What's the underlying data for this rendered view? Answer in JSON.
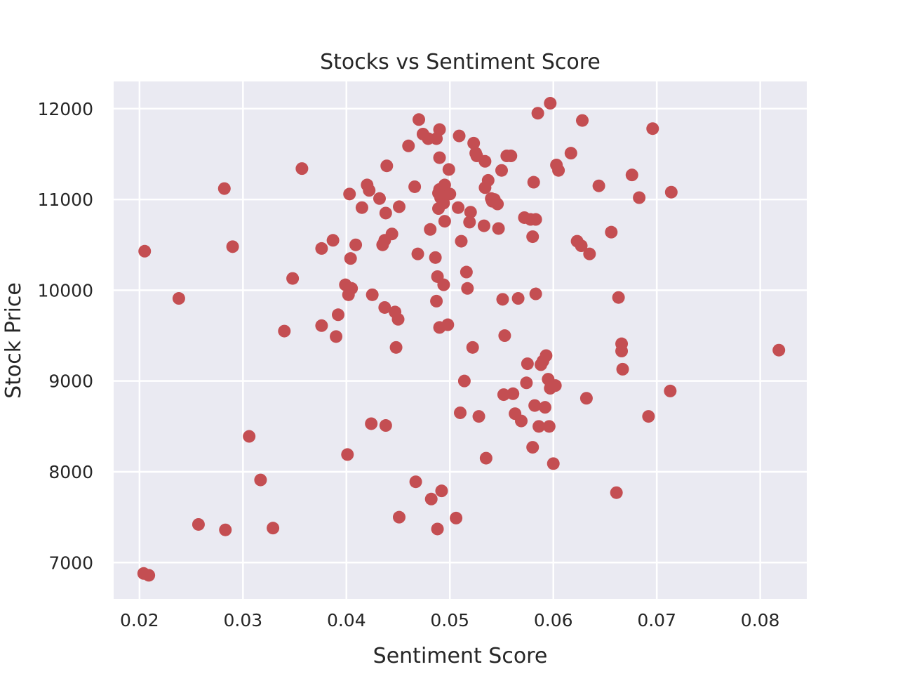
{
  "chart_data": {
    "type": "scatter",
    "title": "Stocks vs Sentiment Score",
    "xlabel": "Sentiment Score",
    "ylabel": "Stock Price",
    "xlim": [
      0.0175,
      0.0845
    ],
    "ylim": [
      6600,
      12300
    ],
    "xticks": [
      0.02,
      0.03,
      0.04,
      0.05,
      0.06,
      0.07,
      0.08
    ],
    "xtick_labels": [
      "0.02",
      "0.03",
      "0.04",
      "0.05",
      "0.06",
      "0.07",
      "0.08"
    ],
    "yticks": [
      7000,
      8000,
      9000,
      10000,
      11000,
      12000
    ],
    "ytick_labels": [
      "7000",
      "8000",
      "9000",
      "10000",
      "11000",
      "12000"
    ],
    "grid": true,
    "colors": {
      "background": "#eaeaf2",
      "grid": "#ffffff",
      "point": "#c44e52"
    },
    "points": [
      [
        0.0204,
        6880
      ],
      [
        0.0209,
        6860
      ],
      [
        0.0205,
        10430
      ],
      [
        0.0238,
        9910
      ],
      [
        0.0257,
        7420
      ],
      [
        0.0282,
        11120
      ],
      [
        0.0283,
        7360
      ],
      [
        0.029,
        10480
      ],
      [
        0.0306,
        8390
      ],
      [
        0.0317,
        7910
      ],
      [
        0.0329,
        7380
      ],
      [
        0.034,
        9550
      ],
      [
        0.0348,
        10130
      ],
      [
        0.0357,
        11340
      ],
      [
        0.0376,
        10460
      ],
      [
        0.0376,
        9610
      ],
      [
        0.0387,
        10550
      ],
      [
        0.039,
        9490
      ],
      [
        0.0392,
        9730
      ],
      [
        0.0399,
        10060
      ],
      [
        0.0401,
        8190
      ],
      [
        0.0402,
        9950
      ],
      [
        0.0403,
        11060
      ],
      [
        0.0404,
        10350
      ],
      [
        0.0405,
        10020
      ],
      [
        0.0409,
        10500
      ],
      [
        0.0415,
        10910
      ],
      [
        0.042,
        11160
      ],
      [
        0.0422,
        11100
      ],
      [
        0.0424,
        8530
      ],
      [
        0.0425,
        9950
      ],
      [
        0.0432,
        11010
      ],
      [
        0.0435,
        10500
      ],
      [
        0.0437,
        10550
      ],
      [
        0.0437,
        9810
      ],
      [
        0.0438,
        8510
      ],
      [
        0.0438,
        10850
      ],
      [
        0.0439,
        11370
      ],
      [
        0.0444,
        10620
      ],
      [
        0.0447,
        9760
      ],
      [
        0.0448,
        9370
      ],
      [
        0.045,
        9680
      ],
      [
        0.0451,
        10920
      ],
      [
        0.0451,
        7500
      ],
      [
        0.046,
        11590
      ],
      [
        0.0466,
        11140
      ],
      [
        0.0467,
        7890
      ],
      [
        0.0469,
        10400
      ],
      [
        0.047,
        11880
      ],
      [
        0.0474,
        11720
      ],
      [
        0.0479,
        11670
      ],
      [
        0.0481,
        10670
      ],
      [
        0.0482,
        7700
      ],
      [
        0.0486,
        10360
      ],
      [
        0.0487,
        11670
      ],
      [
        0.0487,
        9880
      ],
      [
        0.0488,
        7370
      ],
      [
        0.0488,
        10150
      ],
      [
        0.0489,
        10900
      ],
      [
        0.0489,
        11070
      ],
      [
        0.049,
        11110
      ],
      [
        0.049,
        11770
      ],
      [
        0.049,
        11460
      ],
      [
        0.049,
        9590
      ],
      [
        0.0491,
        11020
      ],
      [
        0.0492,
        7790
      ],
      [
        0.0494,
        10960
      ],
      [
        0.0494,
        10060
      ],
      [
        0.0495,
        11160
      ],
      [
        0.0495,
        10760
      ],
      [
        0.0497,
        11060
      ],
      [
        0.0498,
        9620
      ],
      [
        0.0499,
        11330
      ],
      [
        0.05,
        11060
      ],
      [
        0.0506,
        7490
      ],
      [
        0.0508,
        10910
      ],
      [
        0.0509,
        11700
      ],
      [
        0.051,
        8650
      ],
      [
        0.0511,
        10540
      ],
      [
        0.0514,
        9000
      ],
      [
        0.0516,
        10200
      ],
      [
        0.0517,
        10020
      ],
      [
        0.0519,
        10750
      ],
      [
        0.052,
        10860
      ],
      [
        0.0522,
        9370
      ],
      [
        0.0523,
        11620
      ],
      [
        0.0525,
        11510
      ],
      [
        0.0526,
        11480
      ],
      [
        0.0528,
        8610
      ],
      [
        0.0533,
        10710
      ],
      [
        0.0534,
        11130
      ],
      [
        0.0534,
        11420
      ],
      [
        0.0535,
        8150
      ],
      [
        0.0537,
        11210
      ],
      [
        0.054,
        11010
      ],
      [
        0.0541,
        10980
      ],
      [
        0.0543,
        11000
      ],
      [
        0.0546,
        10950
      ],
      [
        0.0547,
        10680
      ],
      [
        0.055,
        11320
      ],
      [
        0.0551,
        9900
      ],
      [
        0.0552,
        8850
      ],
      [
        0.0553,
        9500
      ],
      [
        0.0555,
        11480
      ],
      [
        0.0559,
        11480
      ],
      [
        0.0561,
        8860
      ],
      [
        0.0563,
        8640
      ],
      [
        0.0566,
        9910
      ],
      [
        0.0569,
        8560
      ],
      [
        0.0572,
        10800
      ],
      [
        0.0574,
        8980
      ],
      [
        0.0575,
        9190
      ],
      [
        0.0578,
        10780
      ],
      [
        0.058,
        8270
      ],
      [
        0.058,
        10590
      ],
      [
        0.0581,
        11190
      ],
      [
        0.0582,
        8730
      ],
      [
        0.0583,
        9960
      ],
      [
        0.0583,
        10780
      ],
      [
        0.0585,
        11950
      ],
      [
        0.0586,
        8500
      ],
      [
        0.0588,
        9180
      ],
      [
        0.059,
        9220
      ],
      [
        0.0592,
        8710
      ],
      [
        0.0593,
        9280
      ],
      [
        0.0595,
        9020
      ],
      [
        0.0596,
        8500
      ],
      [
        0.0597,
        8920
      ],
      [
        0.0597,
        12060
      ],
      [
        0.06,
        8090
      ],
      [
        0.0602,
        8950
      ],
      [
        0.0603,
        11380
      ],
      [
        0.0605,
        11320
      ],
      [
        0.0617,
        11510
      ],
      [
        0.0623,
        10540
      ],
      [
        0.0627,
        10490
      ],
      [
        0.0628,
        11870
      ],
      [
        0.0632,
        8810
      ],
      [
        0.0635,
        10400
      ],
      [
        0.0644,
        11150
      ],
      [
        0.0656,
        10640
      ],
      [
        0.0661,
        7770
      ],
      [
        0.0663,
        9920
      ],
      [
        0.0666,
        9410
      ],
      [
        0.0666,
        9330
      ],
      [
        0.0667,
        9130
      ],
      [
        0.0676,
        11270
      ],
      [
        0.0683,
        11020
      ],
      [
        0.0692,
        8610
      ],
      [
        0.0696,
        11780
      ],
      [
        0.0713,
        8890
      ],
      [
        0.0714,
        11080
      ],
      [
        0.0818,
        9340
      ]
    ]
  }
}
